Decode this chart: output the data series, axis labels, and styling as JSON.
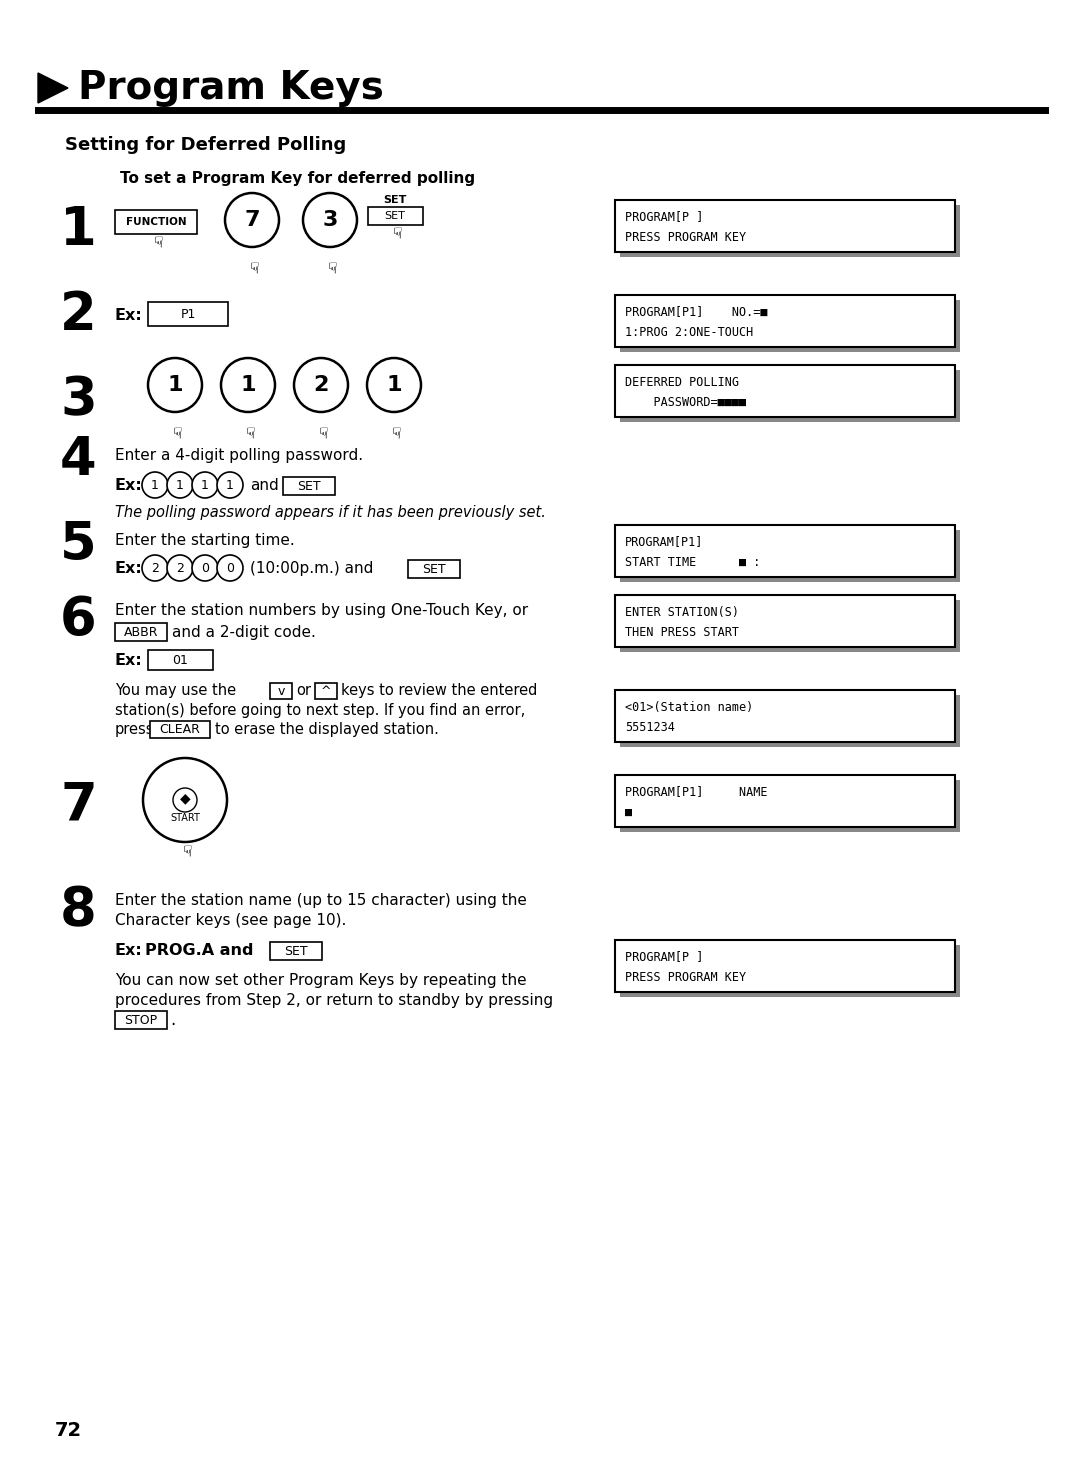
{
  "bg_color": "#ffffff",
  "title": "Program Keys",
  "section_title": "Setting for Deferred Polling",
  "subsection_title": "To set a Program Key for deferred polling",
  "page_number": "72",
  "lcd1": "PROGRAM[P ]\nPRESS PROGRAM KEY",
  "lcd2": "PROGRAM[P1]    NO.=■\n1:PROG 2:ONE-TOUCH",
  "lcd3": "DEFERRED POLLING\n    PASSWORD=■■■■",
  "lcd4": "PROGRAM[P1]\nSTART TIME      ■ :",
  "lcd5": "ENTER STATION(S)\nTHEN PRESS START",
  "lcd6": "<01>(Station name)\n5551234",
  "lcd7": "PROGRAM[P1]     NAME\n■",
  "lcd8": "PROGRAM[P ]\nPRESS PROGRAM KEY"
}
